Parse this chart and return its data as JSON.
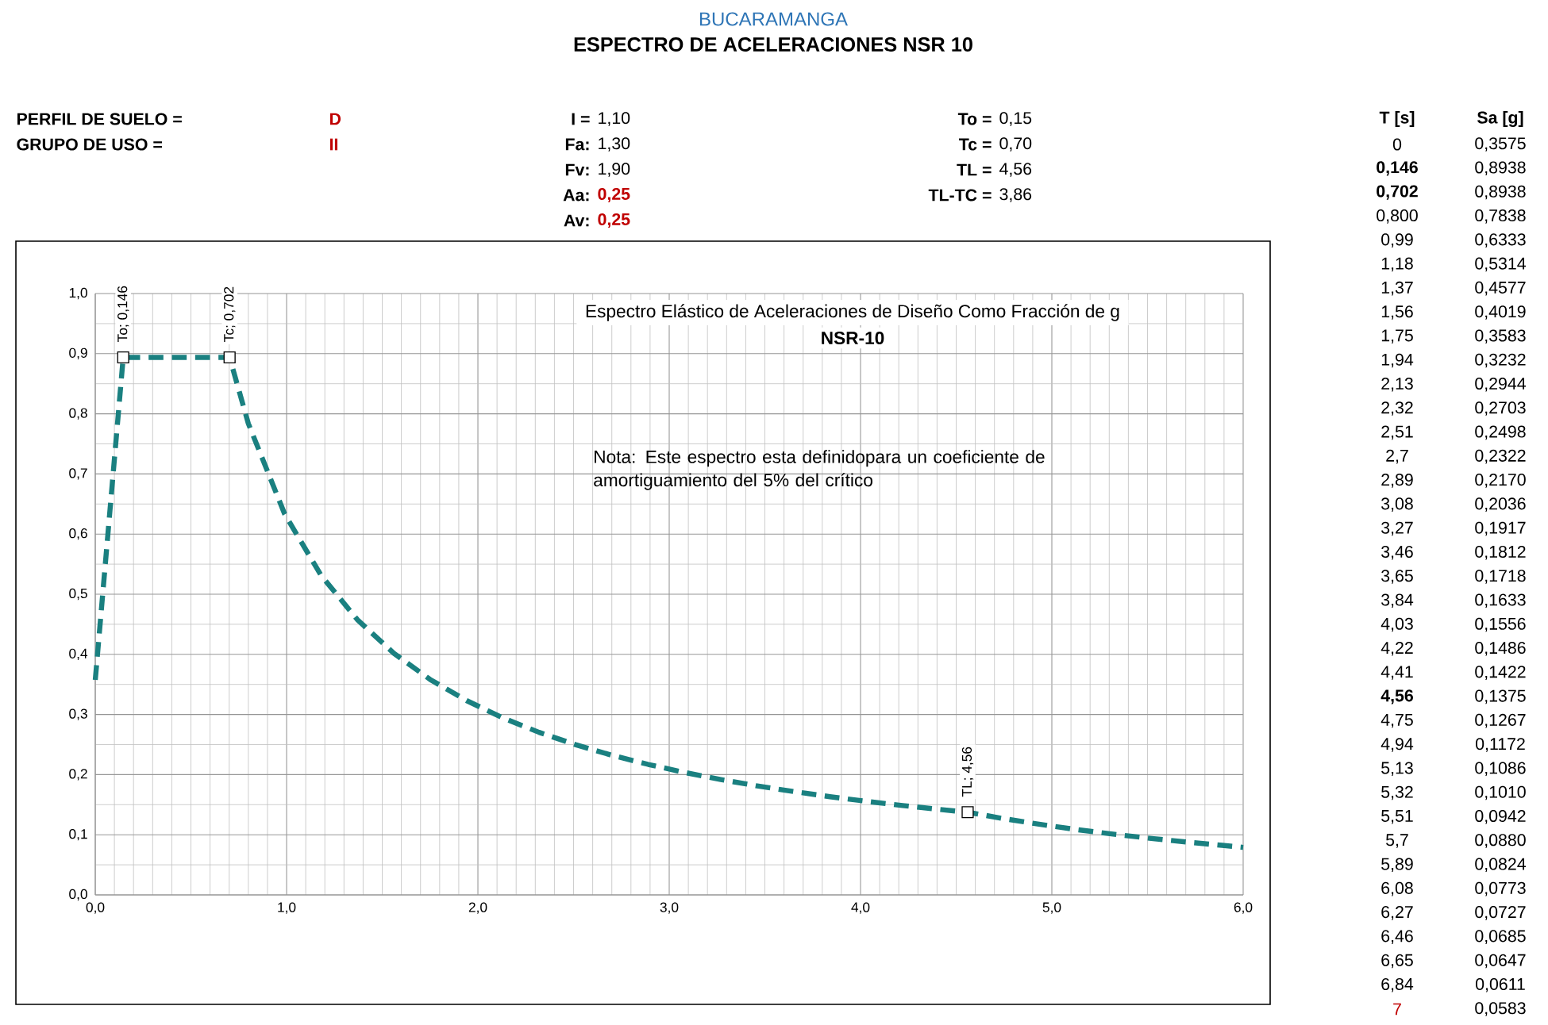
{
  "chart_data": {
    "type": "line",
    "title": "ESPECTRO DE ACELERACIONES NSR 10",
    "subtitle": "BUCARAMANGA",
    "xlim": [
      0,
      6
    ],
    "ylim": [
      0,
      1
    ],
    "xticks": [
      {
        "value": 0,
        "label": "0,0"
      },
      {
        "value": 1,
        "label": "1,0"
      },
      {
        "value": 2,
        "label": "2,0"
      },
      {
        "value": 3,
        "label": "3,0"
      },
      {
        "value": 4,
        "label": "4,0"
      },
      {
        "value": 5,
        "label": "5,0"
      },
      {
        "value": 6,
        "label": "6,0"
      }
    ],
    "yticks": [
      {
        "value": 0,
        "label": "0,0"
      },
      {
        "value": 0.1,
        "label": "0,1"
      },
      {
        "value": 0.2,
        "label": "0,2"
      },
      {
        "value": 0.3,
        "label": "0,3"
      },
      {
        "value": 0.4,
        "label": "0,4"
      },
      {
        "value": 0.5,
        "label": "0,5"
      },
      {
        "value": 0.6,
        "label": "0,6"
      },
      {
        "value": 0.7,
        "label": "0,7"
      },
      {
        "value": 0.8,
        "label": "0,8"
      },
      {
        "value": 0.9,
        "label": "0,9"
      },
      {
        "value": 1,
        "label": "1,0"
      }
    ],
    "grid": true,
    "series": [
      {
        "color": "#1a8080",
        "line_style": "dashed",
        "marker": "none",
        "x": [
          0,
          0.146,
          0.702,
          0.8,
          0.99,
          1.18,
          1.37,
          1.56,
          1.75,
          1.94,
          2.13,
          2.32,
          2.51,
          2.7,
          2.89,
          3.08,
          3.27,
          3.46,
          3.65,
          3.84,
          4.03,
          4.22,
          4.41,
          4.56,
          4.75,
          4.94,
          5.13,
          5.32,
          5.51,
          5.7,
          5.89,
          6.0
        ],
        "values": [
          0.3575,
          0.8938,
          0.8938,
          0.7838,
          0.6333,
          0.5314,
          0.4577,
          0.4019,
          0.3583,
          0.3232,
          0.2944,
          0.2703,
          0.2498,
          0.2322,
          0.217,
          0.2036,
          0.1917,
          0.1812,
          0.1718,
          0.1633,
          0.1556,
          0.1486,
          0.1422,
          0.1375,
          0.1267,
          0.1172,
          0.1086,
          0.101,
          0.0942,
          0.088,
          0.0824,
          0.079
        ]
      },
      {
        "type": "scatter",
        "color": "#ffffff",
        "marker": "square",
        "x": [
          0.146,
          0.702,
          4.56
        ],
        "values": [
          0.8938,
          0.8938,
          0.1375
        ]
      }
    ],
    "annotations": [
      {
        "text": "To; 0,146",
        "x": 0.146,
        "y": 0.8938
      },
      {
        "text": "Tc; 0,702",
        "x": 0.702,
        "y": 0.8938
      },
      {
        "text": "TL; 4,56",
        "x": 4.56,
        "y": 0.1375
      },
      "Espectro Elástico de Aceleraciones de Diseño Como Fracción de g",
      "NSR-10",
      "Nota: Este espectro esta definidopara un coeficiente de amortiguamiento del 5% del crítico",
      "PERFIL DE SUELO =",
      "D",
      "GRUPO DE USO =",
      "II",
      "I =",
      "1,10",
      "Fa:",
      "1,30",
      "Fv:",
      "1,90",
      "Aa:",
      "0,25",
      "Av:",
      "0,25",
      "To =",
      "0,15",
      "Tc =",
      "0,70",
      "TL =",
      "4,56",
      "TL-TC =",
      "3,86",
      "T [s]",
      "Sa [g]",
      "0",
      "0,3575",
      "0,146",
      "0,8938",
      "0,702",
      "0,8938",
      "0,800",
      "0,7838",
      "0,99",
      "0,6333",
      "1,18",
      "0,5314",
      "1,37",
      "0,4577",
      "1,56",
      "0,4019",
      "1,75",
      "0,3583",
      "1,94",
      "0,3232",
      "2,13",
      "0,2944",
      "2,32",
      "0,2703",
      "2,51",
      "0,2498",
      "2,7",
      "0,2322",
      "2,89",
      "0,2170",
      "3,08",
      "0,2036",
      "3,27",
      "0,1917",
      "3,46",
      "0,1812",
      "3,65",
      "0,1718",
      "3,84",
      "0,1633",
      "4,03",
      "0,1556",
      "4,22",
      "0,1486",
      "4,41",
      "0,1422",
      "4,56",
      "0,1375",
      "4,75",
      "0,1267",
      "4,94",
      "0,1172",
      "5,13",
      "0,1086",
      "5,32",
      "0,1010",
      "5,51",
      "0,0942",
      "5,7",
      "0,0880",
      "5,89",
      "0,0824",
      "6,08",
      "0,0773",
      "6,27",
      "0,0727",
      "6,46",
      "0,0685",
      "6,65",
      "0,0647",
      "6,84",
      "0,0611",
      "7",
      "0,0583"
    ]
  }
}
